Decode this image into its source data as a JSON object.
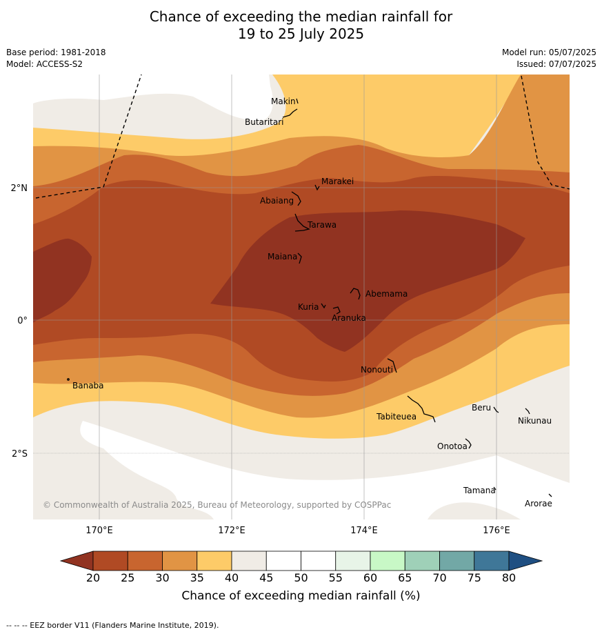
{
  "title_line1": "Chance of exceeding the median rainfall for",
  "title_line2": "19 to 25 July 2025",
  "base_period": "Base period: 1981-2018",
  "model": "Model: ACCESS-S2",
  "model_run": "Model run: 05/07/2025",
  "issued": "Issued: 07/07/2025",
  "copyright": "© Commonwealth of Australia 2025, Bureau of Meteorology, supported by COSPPac",
  "lat_labels": [
    "2°N",
    "0°",
    "2°S"
  ],
  "lon_labels": [
    "170°E",
    "172°E",
    "174°E",
    "176°E"
  ],
  "places": [
    "Makin",
    "Butaritari",
    "Marakei",
    "Abaiang",
    "Tarawa",
    "Maiana",
    "Abemama",
    "Kuria",
    "Aranuka",
    "Nonouti",
    "Banaba",
    "Tabiteuea",
    "Beru",
    "Nikunau",
    "Onotoa",
    "Tamana",
    "Arorae"
  ],
  "colorbar": {
    "title": "Chance of exceeding median rainfall (%)",
    "ticks": [
      "20",
      "25",
      "30",
      "35",
      "40",
      "45",
      "50",
      "55",
      "60",
      "65",
      "70",
      "75",
      "80"
    ],
    "colors": [
      "#b04a24",
      "#c8652f",
      "#e19444",
      "#fdcb68",
      "#f0ece6",
      "#ffffff",
      "#ffffff",
      "#e8f4e8",
      "#c8f8c6",
      "#9fd0b8",
      "#72a8a6",
      "#3f7798"
    ],
    "low_color": "#913321",
    "high_color": "#1f4f82"
  },
  "footer": "--  --  -- EEZ border V11 (Flanders Marine Institute, 2019)."
}
